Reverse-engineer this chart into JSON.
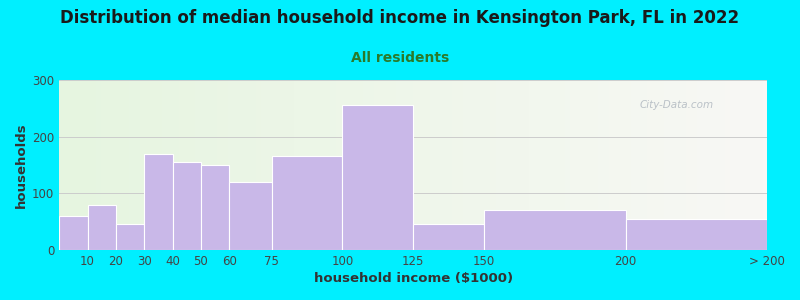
{
  "title": "Distribution of median household income in Kensington Park, FL in 2022",
  "subtitle": "All residents",
  "xlabel": "household income ($1000)",
  "ylabel": "households",
  "background_outer": "#00efff",
  "bar_color": "#c9b8e8",
  "bar_edgecolor": "#ffffff",
  "plot_bg_left": "#e6f5e0",
  "plot_bg_right": "#f8f8f5",
  "ylim": [
    0,
    300
  ],
  "yticks": [
    0,
    100,
    200,
    300
  ],
  "bin_edges": [
    0,
    10,
    20,
    30,
    40,
    50,
    60,
    75,
    100,
    125,
    150,
    200,
    250
  ],
  "tick_labels_x": [
    "10",
    "20",
    "30",
    "40",
    "50",
    "60",
    "75",
    "100",
    "125",
    "150",
    "200",
    "> 200"
  ],
  "tick_positions_x": [
    10,
    20,
    30,
    40,
    50,
    60,
    75,
    100,
    125,
    150,
    200,
    250
  ],
  "values": [
    60,
    80,
    45,
    170,
    155,
    150,
    120,
    165,
    255,
    45,
    70,
    55
  ],
  "title_fontsize": 12,
  "subtitle_fontsize": 10,
  "axis_label_fontsize": 9.5,
  "tick_fontsize": 8.5,
  "title_color": "#1a1a1a",
  "subtitle_color": "#2a7a2a",
  "watermark_text": "City-Data.com",
  "watermark_color": "#b0b8c0"
}
